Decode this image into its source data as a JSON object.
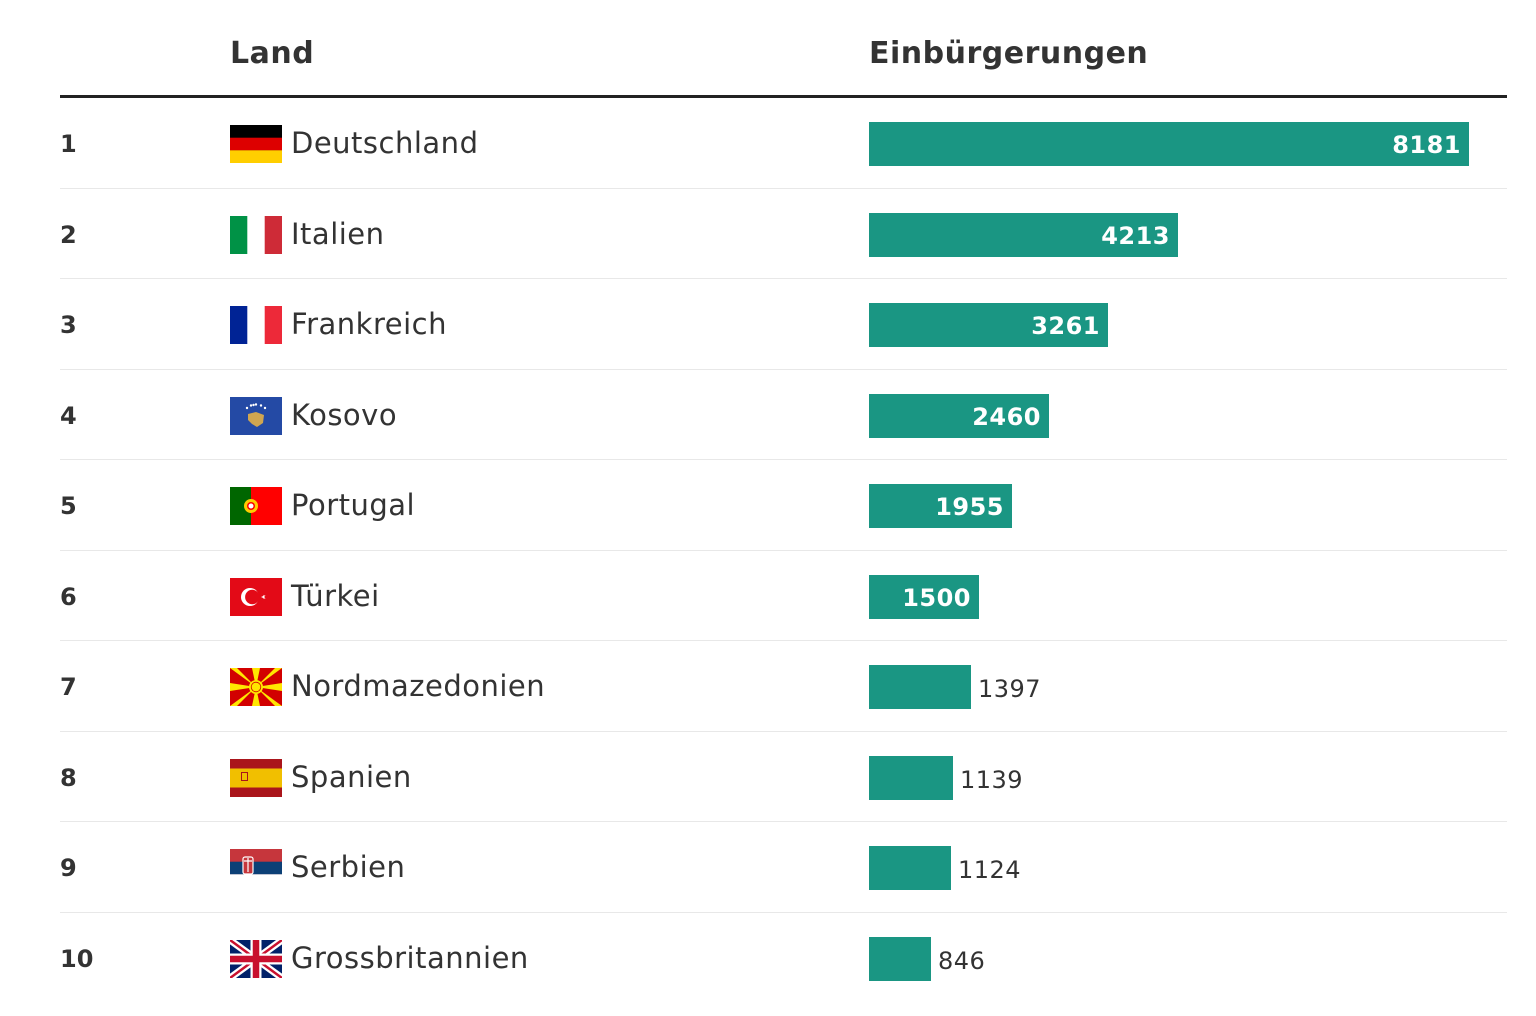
{
  "header": {
    "land": "Land",
    "einbuergerungen": "Einbürgerungen"
  },
  "colors": {
    "bar": "#1a9683",
    "header_rule": "#222222",
    "row_rule": "#e8e8e8"
  },
  "chart_data": {
    "type": "bar",
    "orientation": "horizontal",
    "columns": [
      "Land",
      "Einbürgerungen"
    ],
    "categories": [
      "Deutschland",
      "Italien",
      "Frankreich",
      "Kosovo",
      "Portugal",
      "Türkei",
      "Nordmazedonien",
      "Spanien",
      "Serbien",
      "Grossbritannien"
    ],
    "values": [
      8181,
      4213,
      3261,
      2460,
      1955,
      1500,
      1397,
      1139,
      1124,
      846
    ],
    "xlim": [
      0,
      8181
    ],
    "grid": false,
    "legend": "none",
    "rows": [
      {
        "rank": "1",
        "country": "Deutschland",
        "value": 8181,
        "flag": "flag-germany-icon"
      },
      {
        "rank": "2",
        "country": "Italien",
        "value": 4213,
        "flag": "flag-italy-icon"
      },
      {
        "rank": "3",
        "country": "Frankreich",
        "value": 3261,
        "flag": "flag-france-icon"
      },
      {
        "rank": "4",
        "country": "Kosovo",
        "value": 2460,
        "flag": "flag-kosovo-icon"
      },
      {
        "rank": "5",
        "country": "Portugal",
        "value": 1955,
        "flag": "flag-portugal-icon"
      },
      {
        "rank": "6",
        "country": "Türkei",
        "value": 1500,
        "flag": "flag-turkey-icon"
      },
      {
        "rank": "7",
        "country": "Nordmazedonien",
        "value": 1397,
        "flag": "flag-north-macedonia-icon"
      },
      {
        "rank": "8",
        "country": "Spanien",
        "value": 1139,
        "flag": "flag-spain-icon"
      },
      {
        "rank": "9",
        "country": "Serbien",
        "value": 1124,
        "flag": "flag-serbia-icon"
      },
      {
        "rank": "10",
        "country": "Grossbritannien",
        "value": 846,
        "flag": "flag-united-kingdom-icon"
      }
    ]
  }
}
